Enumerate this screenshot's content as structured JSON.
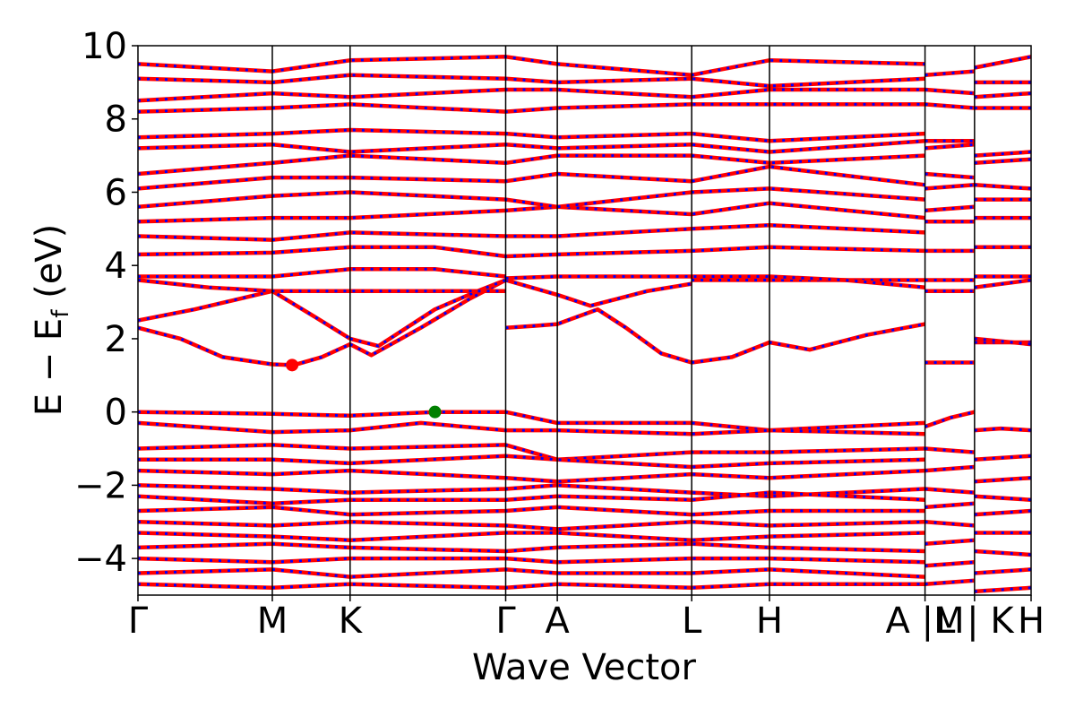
{
  "chart_data": {
    "type": "line",
    "title": "",
    "xlabel": "Wave Vector",
    "ylabel_parts": {
      "main": "E − E",
      "sub": "f",
      "unit": " (eV)"
    },
    "ylim": [
      -5,
      10
    ],
    "y_ticks": [
      -4,
      -2,
      0,
      2,
      4,
      6,
      8,
      10
    ],
    "y_tick_labels": [
      "−4",
      "−2",
      "0",
      "2",
      "4",
      "6",
      "8",
      "10"
    ],
    "x_range": [
      0,
      12.63
    ],
    "kpoints": [
      {
        "label": "Γ",
        "x": 0.0
      },
      {
        "label": "M",
        "x": 1.9
      },
      {
        "label": "K",
        "x": 3.0
      },
      {
        "label": "Γ",
        "x": 5.2
      },
      {
        "label": "A",
        "x": 5.93
      },
      {
        "label": "L",
        "x": 7.83
      },
      {
        "label": "H",
        "x": 8.93
      },
      {
        "label": "A |M",
        "x": 11.13
      },
      {
        "label": "L | K",
        "x": 11.83
      },
      {
        "label": "H",
        "x": 12.63
      }
    ],
    "colors": {
      "band_primary": "#ff0000",
      "band_dash": "#0000ff",
      "cbm_marker": "#ff0000",
      "vbm_marker": "#008000",
      "axes": "#000000"
    },
    "special_points": [
      {
        "name": "CBM",
        "x": 2.18,
        "y": 1.28
      },
      {
        "name": "VBM",
        "x": 4.2,
        "y": 0.0
      }
    ],
    "series": [
      {
        "x": [
          0,
          0.6,
          1.2,
          1.9,
          2.2,
          2.6,
          3.0
        ],
        "y": [
          2.3,
          2.0,
          1.5,
          1.3,
          1.28,
          1.5,
          1.85
        ]
      },
      {
        "x": [
          3.0,
          3.3,
          4.0,
          4.7,
          5.2
        ],
        "y": [
          1.85,
          1.55,
          2.3,
          3.1,
          3.6
        ]
      },
      {
        "x": [
          3.0,
          3.4,
          4.2,
          4.8,
          5.2
        ],
        "y": [
          2.0,
          1.8,
          2.8,
          3.3,
          3.6
        ]
      },
      {
        "x": [
          0,
          0.8,
          1.9,
          2.5,
          3.0
        ],
        "y": [
          2.5,
          2.8,
          3.3,
          2.6,
          2.0
        ]
      },
      {
        "x": [
          5.2,
          5.6,
          5.93,
          6.5,
          6.9,
          7.4,
          7.83
        ],
        "y": [
          2.3,
          2.35,
          2.4,
          2.8,
          2.3,
          1.6,
          1.35
        ]
      },
      {
        "x": [
          7.83,
          8.4,
          8.93,
          9.5,
          10.3,
          11.13
        ],
        "y": [
          1.35,
          1.5,
          1.9,
          1.7,
          2.1,
          2.4
        ]
      },
      {
        "x": [
          5.2,
          5.93,
          6.4,
          7.2,
          7.83
        ],
        "y": [
          3.6,
          3.2,
          2.9,
          3.3,
          3.5
        ]
      },
      {
        "x": [
          7.83,
          8.93,
          9.6,
          10.4,
          11.13
        ],
        "y": [
          3.6,
          3.6,
          3.6,
          3.6,
          3.6
        ]
      },
      {
        "x": [
          0,
          1.0,
          1.9,
          3.0,
          5.2
        ],
        "y": [
          3.6,
          3.4,
          3.3,
          3.3,
          3.3
        ]
      },
      {
        "x": [
          0,
          1.2,
          1.9,
          3.0,
          4.2,
          5.2
        ],
        "y": [
          3.7,
          3.7,
          3.7,
          3.9,
          3.9,
          3.7
        ]
      },
      {
        "x": [
          5.2,
          5.93,
          7.0,
          7.83,
          8.93,
          10.0,
          11.13
        ],
        "y": [
          3.65,
          3.7,
          3.7,
          3.7,
          3.7,
          3.6,
          3.4
        ]
      },
      {
        "x": [
          0,
          1.9,
          3.0,
          4.2,
          5.2,
          5.93,
          7.83,
          8.93,
          11.13
        ],
        "y": [
          4.3,
          4.35,
          4.5,
          4.5,
          4.25,
          4.3,
          4.4,
          4.5,
          4.4
        ]
      },
      {
        "x": [
          0,
          1.9,
          3.0,
          5.2,
          5.93,
          7.83,
          8.93,
          11.13
        ],
        "y": [
          4.8,
          4.7,
          4.9,
          4.8,
          4.8,
          5.0,
          5.1,
          4.9
        ]
      },
      {
        "x": [
          0,
          1.9,
          3.0,
          5.2,
          5.93,
          7.83,
          8.93,
          11.13
        ],
        "y": [
          5.2,
          5.3,
          5.3,
          5.5,
          5.6,
          5.4,
          5.7,
          5.3
        ]
      },
      {
        "x": [
          0,
          1.9,
          3.0,
          5.2,
          5.93,
          7.83,
          8.93,
          11.13
        ],
        "y": [
          5.6,
          5.9,
          6.0,
          5.8,
          5.6,
          6.0,
          6.1,
          5.8
        ]
      },
      {
        "x": [
          0,
          1.9,
          3.0,
          5.2,
          5.93,
          7.83,
          8.93,
          11.13
        ],
        "y": [
          6.1,
          6.4,
          6.4,
          6.3,
          6.5,
          6.3,
          6.7,
          6.2
        ]
      },
      {
        "x": [
          0,
          1.9,
          3.0,
          5.2,
          5.93,
          7.83,
          8.93,
          11.13
        ],
        "y": [
          6.5,
          6.8,
          7.0,
          6.8,
          7.0,
          7.0,
          6.8,
          7.0
        ]
      },
      {
        "x": [
          0,
          1.9,
          3.0,
          5.2,
          5.93,
          7.83,
          8.93,
          11.13
        ],
        "y": [
          7.2,
          7.3,
          7.1,
          7.3,
          7.2,
          7.3,
          7.1,
          7.4
        ]
      },
      {
        "x": [
          0,
          1.9,
          3.0,
          5.2,
          5.93,
          7.83,
          8.93,
          11.13
        ],
        "y": [
          7.5,
          7.6,
          7.7,
          7.6,
          7.5,
          7.6,
          7.4,
          7.6
        ]
      },
      {
        "x": [
          0,
          1.9,
          3.0,
          5.2,
          5.93,
          7.83,
          8.93,
          11.13
        ],
        "y": [
          8.2,
          8.3,
          8.4,
          8.2,
          8.3,
          8.4,
          8.4,
          8.4
        ]
      },
      {
        "x": [
          0,
          1.9,
          3.0,
          5.2,
          5.93,
          7.83,
          8.93,
          11.13
        ],
        "y": [
          8.5,
          8.7,
          8.6,
          8.8,
          8.8,
          8.6,
          8.8,
          8.8
        ]
      },
      {
        "x": [
          0,
          1.9,
          3.0,
          5.2,
          5.93,
          7.83,
          8.93,
          11.13
        ],
        "y": [
          9.1,
          9.0,
          9.2,
          9.1,
          9.0,
          9.1,
          8.9,
          9.1
        ]
      },
      {
        "x": [
          0,
          1.9,
          3.0,
          5.2,
          5.93,
          7.83,
          8.93,
          11.13
        ],
        "y": [
          9.5,
          9.3,
          9.6,
          9.7,
          9.5,
          9.2,
          9.6,
          9.5
        ]
      },
      {
        "x": [
          0,
          1.9,
          3.0,
          4.2,
          5.2,
          5.93,
          7.83,
          8.93,
          11.13
        ],
        "y": [
          0.0,
          -0.05,
          -0.1,
          0.0,
          0.0,
          -0.3,
          -0.3,
          -0.5,
          -0.3
        ]
      },
      {
        "x": [
          0,
          1.9,
          3.0,
          4.0,
          5.2,
          5.93,
          7.83,
          8.93,
          11.13
        ],
        "y": [
          -0.3,
          -0.55,
          -0.5,
          -0.3,
          -0.5,
          -0.5,
          -0.6,
          -0.5,
          -0.6
        ]
      },
      {
        "x": [
          0,
          1.9,
          3.0,
          5.2,
          5.93,
          7.83,
          8.93,
          11.13
        ],
        "y": [
          -1.0,
          -0.9,
          -1.0,
          -0.9,
          -1.3,
          -1.1,
          -1.1,
          -1.0
        ]
      },
      {
        "x": [
          0,
          1.9,
          3.0,
          5.2,
          5.93,
          7.83,
          8.93,
          11.13
        ],
        "y": [
          -1.3,
          -1.3,
          -1.4,
          -1.2,
          -1.3,
          -1.5,
          -1.4,
          -1.3
        ]
      },
      {
        "x": [
          0,
          1.9,
          3.0,
          5.2,
          5.93,
          7.83,
          8.93,
          11.13
        ],
        "y": [
          -1.6,
          -1.7,
          -1.6,
          -1.8,
          -1.9,
          -1.7,
          -1.8,
          -1.6
        ]
      },
      {
        "x": [
          0,
          1.9,
          3.0,
          5.2,
          5.93,
          7.83,
          8.93,
          11.13
        ],
        "y": [
          -2.0,
          -2.1,
          -2.2,
          -2.1,
          -2.0,
          -2.2,
          -2.3,
          -2.1
        ]
      },
      {
        "x": [
          0,
          1.9,
          3.0,
          5.2,
          5.93,
          7.83,
          8.93,
          11.13
        ],
        "y": [
          -2.3,
          -2.5,
          -2.4,
          -2.4,
          -2.3,
          -2.4,
          -2.2,
          -2.4
        ]
      },
      {
        "x": [
          0,
          1.9,
          3.0,
          5.2,
          5.93,
          7.83,
          8.93,
          11.13
        ],
        "y": [
          -2.7,
          -2.6,
          -2.8,
          -2.7,
          -2.6,
          -2.8,
          -2.7,
          -2.7
        ]
      },
      {
        "x": [
          0,
          1.9,
          3.0,
          5.2,
          5.93,
          7.83,
          8.93,
          11.13
        ],
        "y": [
          -3.0,
          -3.1,
          -3.0,
          -3.1,
          -3.2,
          -3.0,
          -3.1,
          -3.0
        ]
      },
      {
        "x": [
          0,
          1.9,
          3.0,
          5.2,
          5.93,
          7.83,
          8.93,
          11.13
        ],
        "y": [
          -3.3,
          -3.4,
          -3.5,
          -3.3,
          -3.3,
          -3.5,
          -3.4,
          -3.3
        ]
      },
      {
        "x": [
          0,
          1.9,
          3.0,
          5.2,
          5.93,
          7.83,
          8.93,
          11.13
        ],
        "y": [
          -3.7,
          -3.6,
          -3.7,
          -3.8,
          -3.7,
          -3.6,
          -3.7,
          -3.8
        ]
      },
      {
        "x": [
          0,
          1.9,
          3.0,
          5.2,
          5.93,
          7.83,
          8.93,
          11.13
        ],
        "y": [
          -4.0,
          -4.1,
          -4.0,
          -4.0,
          -4.1,
          -4.0,
          -4.0,
          -4.1
        ]
      },
      {
        "x": [
          0,
          1.9,
          3.0,
          5.2,
          5.93,
          7.83,
          8.93,
          11.13
        ],
        "y": [
          -4.4,
          -4.3,
          -4.5,
          -4.3,
          -4.4,
          -4.4,
          -4.3,
          -4.5
        ]
      },
      {
        "x": [
          0,
          1.9,
          3.0,
          5.2,
          5.93,
          7.83,
          8.93,
          11.13
        ],
        "y": [
          -4.7,
          -4.8,
          -4.7,
          -4.8,
          -4.7,
          -4.8,
          -4.7,
          -4.7
        ]
      },
      {
        "x": [
          11.13,
          11.5,
          11.83
        ],
        "y": [
          -0.4,
          -0.15,
          0.0
        ]
      },
      {
        "x": [
          11.83,
          12.2,
          12.63
        ],
        "y": [
          -0.5,
          -0.45,
          -0.5
        ]
      },
      {
        "x": [
          11.13,
          11.83
        ],
        "y": [
          1.35,
          1.35
        ]
      },
      {
        "x": [
          11.83,
          12.63
        ],
        "y": [
          1.9,
          1.9
        ]
      },
      {
        "x": [
          11.83,
          12.63
        ],
        "y": [
          2.0,
          1.85
        ]
      },
      {
        "x": [
          11.13,
          11.83
        ],
        "y": [
          3.3,
          3.3
        ]
      },
      {
        "x": [
          11.83,
          12.63
        ],
        "y": [
          3.4,
          3.6
        ]
      },
      {
        "x": [
          11.13,
          11.83
        ],
        "y": [
          3.6,
          3.6
        ]
      },
      {
        "x": [
          11.83,
          12.63
        ],
        "y": [
          3.7,
          3.7
        ]
      },
      {
        "x": [
          11.13,
          11.83
        ],
        "y": [
          4.4,
          4.4
        ]
      },
      {
        "x": [
          11.83,
          12.63
        ],
        "y": [
          4.5,
          4.5
        ]
      },
      {
        "x": [
          11.13,
          11.83
        ],
        "y": [
          5.2,
          5.2
        ]
      },
      {
        "x": [
          11.83,
          12.63
        ],
        "y": [
          5.3,
          5.3
        ]
      },
      {
        "x": [
          11.13,
          11.83
        ],
        "y": [
          5.5,
          5.6
        ]
      },
      {
        "x": [
          11.83,
          12.63
        ],
        "y": [
          5.8,
          5.8
        ]
      },
      {
        "x": [
          11.13,
          11.83
        ],
        "y": [
          6.1,
          6.2
        ]
      },
      {
        "x": [
          11.83,
          12.63
        ],
        "y": [
          6.2,
          6.1
        ]
      },
      {
        "x": [
          11.13,
          11.83
        ],
        "y": [
          6.5,
          6.4
        ]
      },
      {
        "x": [
          11.83,
          12.63
        ],
        "y": [
          6.8,
          6.9
        ]
      },
      {
        "x": [
          11.13,
          11.83
        ],
        "y": [
          7.2,
          7.3
        ]
      },
      {
        "x": [
          11.83,
          12.63
        ],
        "y": [
          7.0,
          7.1
        ]
      },
      {
        "x": [
          11.13,
          11.83
        ],
        "y": [
          7.4,
          7.4
        ]
      },
      {
        "x": [
          11.83,
          12.63
        ],
        "y": [
          8.3,
          8.3
        ]
      },
      {
        "x": [
          11.13,
          11.83
        ],
        "y": [
          8.4,
          8.3
        ]
      },
      {
        "x": [
          11.83,
          12.63
        ],
        "y": [
          8.6,
          8.7
        ]
      },
      {
        "x": [
          11.13,
          11.83
        ],
        "y": [
          8.8,
          8.7
        ]
      },
      {
        "x": [
          11.83,
          12.63
        ],
        "y": [
          9.0,
          9.0
        ]
      },
      {
        "x": [
          11.13,
          11.83
        ],
        "y": [
          9.2,
          9.3
        ]
      },
      {
        "x": [
          11.83,
          12.63
        ],
        "y": [
          9.4,
          9.7
        ]
      },
      {
        "x": [
          11.13,
          11.83
        ],
        "y": [
          -1.0,
          -1.1
        ]
      },
      {
        "x": [
          11.83,
          12.63
        ],
        "y": [
          -1.3,
          -1.2
        ]
      },
      {
        "x": [
          11.13,
          11.83
        ],
        "y": [
          -1.6,
          -1.5
        ]
      },
      {
        "x": [
          11.83,
          12.63
        ],
        "y": [
          -1.9,
          -1.8
        ]
      },
      {
        "x": [
          11.13,
          11.83
        ],
        "y": [
          -2.1,
          -2.2
        ]
      },
      {
        "x": [
          11.83,
          12.63
        ],
        "y": [
          -2.3,
          -2.4
        ]
      },
      {
        "x": [
          11.13,
          11.83
        ],
        "y": [
          -2.6,
          -2.5
        ]
      },
      {
        "x": [
          11.83,
          12.63
        ],
        "y": [
          -2.8,
          -2.7
        ]
      },
      {
        "x": [
          11.13,
          11.83
        ],
        "y": [
          -3.0,
          -3.1
        ]
      },
      {
        "x": [
          11.83,
          12.63
        ],
        "y": [
          -3.3,
          -3.3
        ]
      },
      {
        "x": [
          11.13,
          11.83
        ],
        "y": [
          -3.6,
          -3.5
        ]
      },
      {
        "x": [
          11.83,
          12.63
        ],
        "y": [
          -3.8,
          -3.9
        ]
      },
      {
        "x": [
          11.13,
          11.83
        ],
        "y": [
          -4.2,
          -4.1
        ]
      },
      {
        "x": [
          11.83,
          12.63
        ],
        "y": [
          -4.4,
          -4.3
        ]
      },
      {
        "x": [
          11.13,
          11.83
        ],
        "y": [
          -4.7,
          -4.6
        ]
      },
      {
        "x": [
          11.83,
          12.63
        ],
        "y": [
          -4.9,
          -4.8
        ]
      }
    ]
  }
}
